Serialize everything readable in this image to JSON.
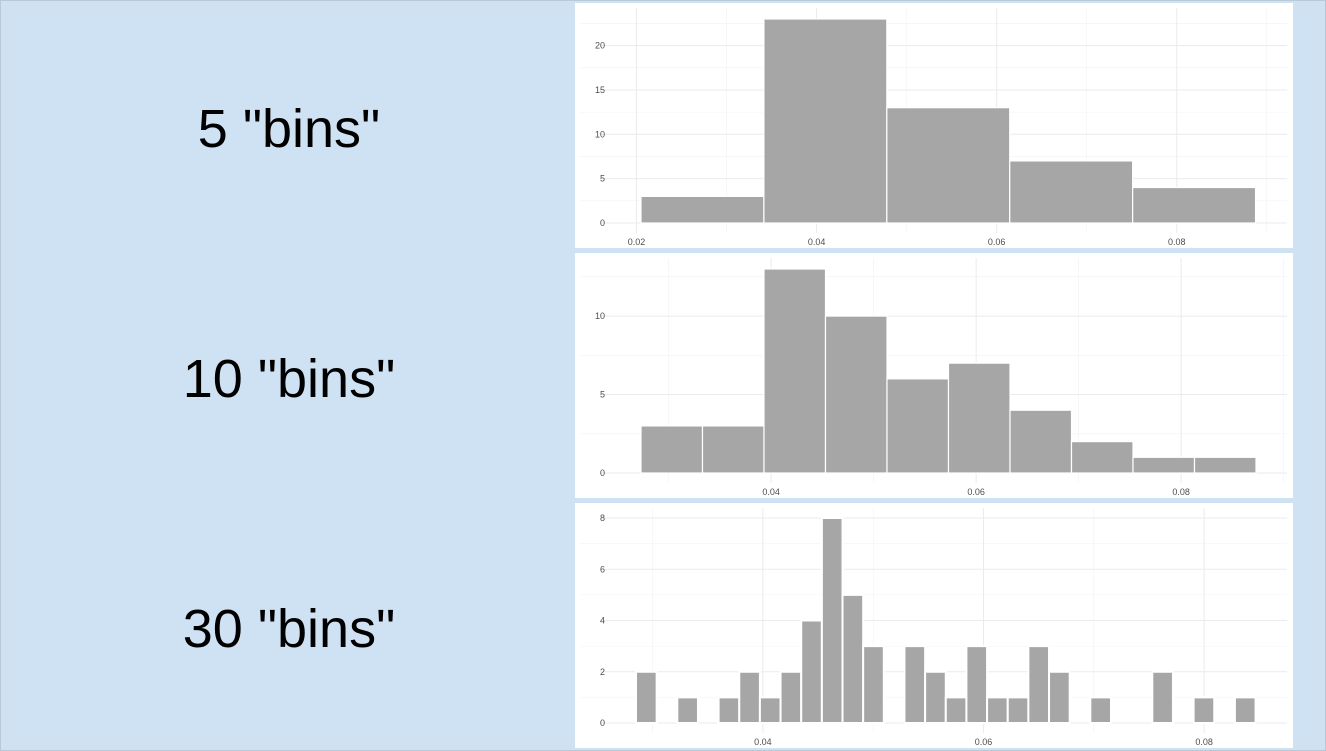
{
  "panels": [
    {
      "label": "5 \"bins\""
    },
    {
      "label": "10 \"bins\""
    },
    {
      "label": "30 \"bins\""
    }
  ],
  "chart_data": [
    {
      "type": "bar",
      "title": "",
      "bins": 5,
      "bin_start": 0.0205,
      "bin_width": 0.01365,
      "values": [
        3,
        23,
        13,
        7,
        4
      ],
      "xlim": [
        0.0205,
        0.0888
      ],
      "ylim": [
        0,
        23
      ],
      "x_ticks": [
        0.02,
        0.04,
        0.06,
        0.08
      ],
      "x_tick_labels": [
        "0.02",
        "0.04",
        "0.06",
        "0.08"
      ],
      "y_ticks": [
        0,
        5,
        10,
        15,
        20
      ],
      "y_tick_labels": [
        "0",
        "5",
        "10",
        "15",
        "20"
      ],
      "grid": true
    },
    {
      "type": "bar",
      "title": "",
      "bins": 10,
      "bin_start": 0.0273,
      "bin_width": 0.006,
      "values": [
        3,
        3,
        13,
        10,
        6,
        7,
        4,
        2,
        1,
        1
      ],
      "xlim": [
        0.0273,
        0.0873
      ],
      "ylim": [
        0,
        13
      ],
      "x_ticks": [
        0.04,
        0.06,
        0.08
      ],
      "x_tick_labels": [
        "0.04",
        "0.06",
        "0.08"
      ],
      "y_ticks": [
        0,
        5,
        10
      ],
      "y_tick_labels": [
        "0",
        "5",
        "10"
      ],
      "grid": true
    },
    {
      "type": "bar",
      "title": "",
      "bins": 30,
      "bin_start": 0.0285,
      "bin_width": 0.001872,
      "values": [
        2,
        0,
        1,
        0,
        1,
        2,
        1,
        2,
        4,
        8,
        5,
        3,
        0,
        3,
        2,
        1,
        3,
        1,
        1,
        3,
        2,
        0,
        1,
        0,
        0,
        2,
        0,
        1,
        0,
        1
      ],
      "xlim": [
        0.0285,
        0.0847
      ],
      "ylim": [
        0,
        8
      ],
      "x_ticks": [
        0.04,
        0.06,
        0.08
      ],
      "x_tick_labels": [
        "0.04",
        "0.06",
        "0.08"
      ],
      "y_ticks": [
        0,
        2,
        4,
        6,
        8
      ],
      "y_tick_labels": [
        "0",
        "2",
        "4",
        "6",
        "8"
      ],
      "grid": true
    }
  ]
}
